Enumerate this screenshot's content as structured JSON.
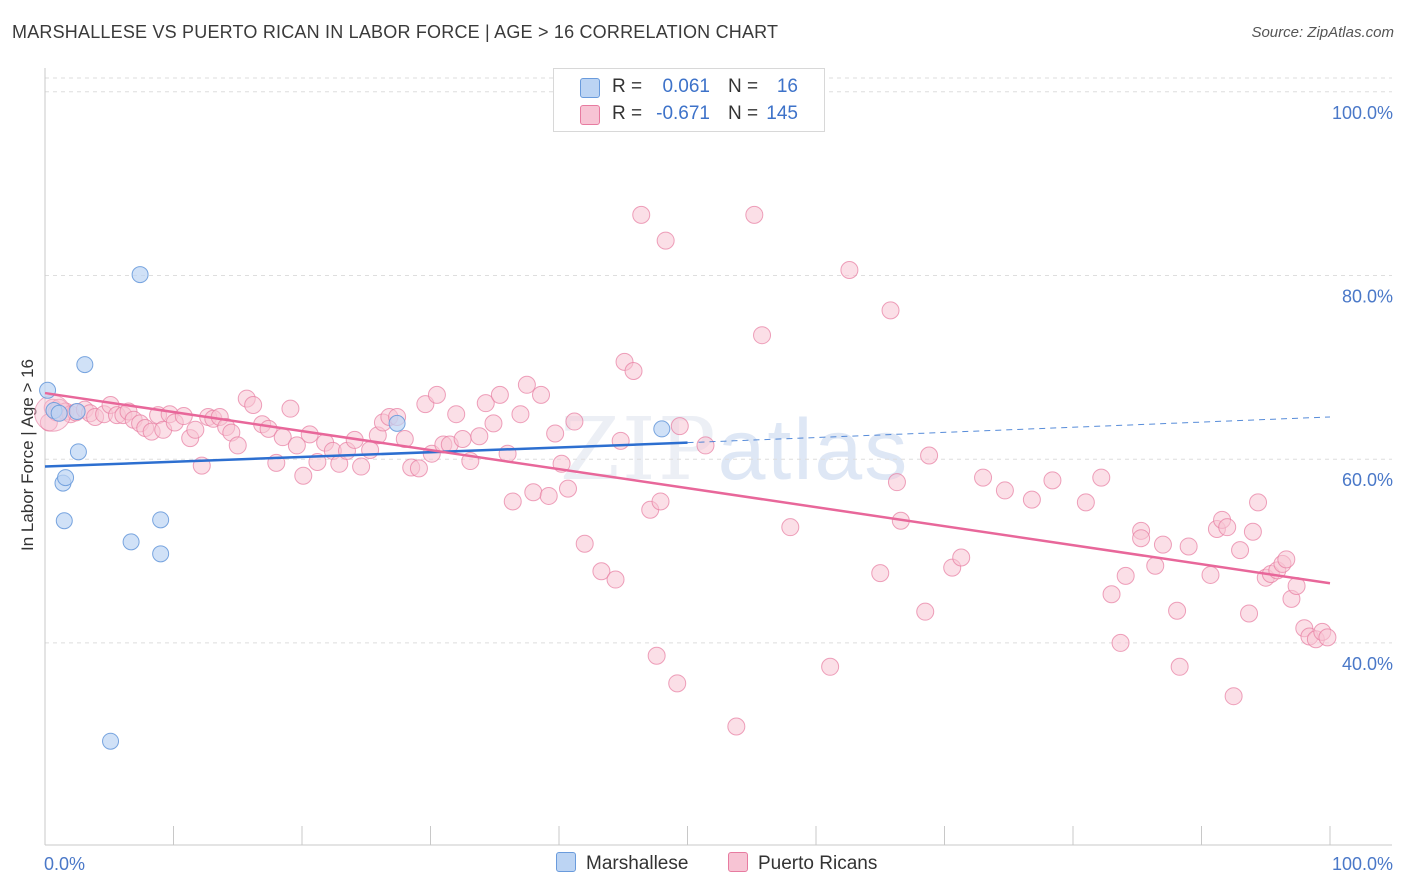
{
  "title": "MARSHALLESE VS PUERTO RICAN IN LABOR FORCE | AGE > 16 CORRELATION CHART",
  "source": "Source: ZipAtlas.com",
  "watermark": {
    "zip": "ZIP",
    "atlas": "atlas"
  },
  "colors": {
    "marshallese": "#6a9bdc",
    "marshallese_fill": "#bcd4f3",
    "puerto": "#e77ba0",
    "puerto_fill": "#f7c4d4",
    "trend_blue": "#2d6fd0",
    "trend_pink": "#e8679a",
    "axis_text": "#4a78c8"
  },
  "legend_top": {
    "rows": [
      {
        "r_label": "R =",
        "r_value": "0.061",
        "n_label": "N =",
        "n_value": "16"
      },
      {
        "r_label": "R =",
        "r_value": "-0.671",
        "n_label": "N =",
        "n_value": "145"
      }
    ]
  },
  "legend_bottom": {
    "marshallese": "Marshallese",
    "puerto": "Puerto Ricans"
  },
  "chart_data": {
    "type": "scatter",
    "title": "MARSHALLESE VS PUERTO RICAN IN LABOR FORCE | AGE > 16 CORRELATION CHART",
    "xlabel": "",
    "ylabel": "In Labor Force | Age > 16",
    "xlim": [
      0,
      100
    ],
    "ylim": [
      18,
      101.5
    ],
    "x_tick_labels": [
      "0.0%",
      "100.0%"
    ],
    "y_ticks": [
      40,
      60,
      80,
      100
    ],
    "y_tick_labels": [
      "40.0%",
      "60.0%",
      "80.0%",
      "100.0%"
    ],
    "series": [
      {
        "name": "Marshallese",
        "r": 0.061,
        "n": 16,
        "trend": {
          "x0": 0,
          "y0": 59.2,
          "x1": 50,
          "y1": 61.8,
          "dash_to_x": 100,
          "dash_to_y": 64.6
        },
        "points": [
          [
            0.2,
            67.5
          ],
          [
            0.7,
            65.3
          ],
          [
            1.1,
            65.0
          ],
          [
            1.4,
            57.4
          ],
          [
            1.6,
            58.0
          ],
          [
            1.5,
            53.3
          ],
          [
            2.5,
            65.2
          ],
          [
            2.6,
            60.8
          ],
          [
            3.1,
            70.3
          ],
          [
            5.1,
            29.3
          ],
          [
            6.7,
            51.0
          ],
          [
            7.4,
            80.1
          ],
          [
            9.0,
            49.7
          ],
          [
            9.0,
            53.4
          ],
          [
            27.4,
            63.9
          ],
          [
            48.0,
            63.3
          ]
        ]
      },
      {
        "name": "Puerto Ricans",
        "r": -0.671,
        "n": 145,
        "trend": {
          "x0": 0,
          "y0": 67.2,
          "x1": 100,
          "y1": 46.5
        },
        "points": [
          [
            0.3,
            64.0
          ],
          [
            0.6,
            65.6
          ],
          [
            0.9,
            65.1
          ],
          [
            1.1,
            65.6
          ],
          [
            1.6,
            65.2
          ],
          [
            2.0,
            64.9
          ],
          [
            2.4,
            65.1
          ],
          [
            3.1,
            65.4
          ],
          [
            3.5,
            65.0
          ],
          [
            3.9,
            64.6
          ],
          [
            4.6,
            64.9
          ],
          [
            5.1,
            65.9
          ],
          [
            5.6,
            64.8
          ],
          [
            6.1,
            64.8
          ],
          [
            6.5,
            65.2
          ],
          [
            6.9,
            64.3
          ],
          [
            7.4,
            63.9
          ],
          [
            7.8,
            63.4
          ],
          [
            8.3,
            63.0
          ],
          [
            8.8,
            64.8
          ],
          [
            9.2,
            63.2
          ],
          [
            9.7,
            64.9
          ],
          [
            10.1,
            64.0
          ],
          [
            10.8,
            64.7
          ],
          [
            11.3,
            62.3
          ],
          [
            11.7,
            63.2
          ],
          [
            12.2,
            59.3
          ],
          [
            12.7,
            64.6
          ],
          [
            13.1,
            64.4
          ],
          [
            13.6,
            64.6
          ],
          [
            14.1,
            63.5
          ],
          [
            14.5,
            62.9
          ],
          [
            15.0,
            61.5
          ],
          [
            15.7,
            66.6
          ],
          [
            16.2,
            65.9
          ],
          [
            16.9,
            63.8
          ],
          [
            17.4,
            63.3
          ],
          [
            18.0,
            59.6
          ],
          [
            18.5,
            62.4
          ],
          [
            19.1,
            65.5
          ],
          [
            19.6,
            61.5
          ],
          [
            20.1,
            58.2
          ],
          [
            20.6,
            62.7
          ],
          [
            21.2,
            59.7
          ],
          [
            21.8,
            61.8
          ],
          [
            22.4,
            60.9
          ],
          [
            22.9,
            59.5
          ],
          [
            23.5,
            60.9
          ],
          [
            24.1,
            62.1
          ],
          [
            24.6,
            59.2
          ],
          [
            25.3,
            61.0
          ],
          [
            25.9,
            62.6
          ],
          [
            26.3,
            64.0
          ],
          [
            26.8,
            64.6
          ],
          [
            27.4,
            64.6
          ],
          [
            28.0,
            62.2
          ],
          [
            28.5,
            59.1
          ],
          [
            29.1,
            59.0
          ],
          [
            29.6,
            66.0
          ],
          [
            30.1,
            60.6
          ],
          [
            30.5,
            67.0
          ],
          [
            31.0,
            61.6
          ],
          [
            31.5,
            61.6
          ],
          [
            32.0,
            64.9
          ],
          [
            32.5,
            62.2
          ],
          [
            33.1,
            59.8
          ],
          [
            33.8,
            62.5
          ],
          [
            34.3,
            66.1
          ],
          [
            34.9,
            63.9
          ],
          [
            35.4,
            67.0
          ],
          [
            36.0,
            60.6
          ],
          [
            36.4,
            55.4
          ],
          [
            37.0,
            64.9
          ],
          [
            37.5,
            68.1
          ],
          [
            38.0,
            56.4
          ],
          [
            38.6,
            67.0
          ],
          [
            39.2,
            56.0
          ],
          [
            39.7,
            62.8
          ],
          [
            40.2,
            59.5
          ],
          [
            40.7,
            56.8
          ],
          [
            41.2,
            64.1
          ],
          [
            42.0,
            50.8
          ],
          [
            43.3,
            47.8
          ],
          [
            44.4,
            46.9
          ],
          [
            44.8,
            62.0
          ],
          [
            45.1,
            70.6
          ],
          [
            45.8,
            69.6
          ],
          [
            46.4,
            86.6
          ],
          [
            47.1,
            54.5
          ],
          [
            47.6,
            38.6
          ],
          [
            47.9,
            55.4
          ],
          [
            49.4,
            63.6
          ],
          [
            49.2,
            35.6
          ],
          [
            51.4,
            61.5
          ],
          [
            53.8,
            30.9
          ],
          [
            55.8,
            73.5
          ],
          [
            58.0,
            52.6
          ],
          [
            61.1,
            37.4
          ],
          [
            62.6,
            80.6
          ],
          [
            65.0,
            47.6
          ],
          [
            65.8,
            76.2
          ],
          [
            66.3,
            57.5
          ],
          [
            66.6,
            53.3
          ],
          [
            68.5,
            43.4
          ],
          [
            68.8,
            60.4
          ],
          [
            70.6,
            48.2
          ],
          [
            71.3,
            49.3
          ],
          [
            73.0,
            58.0
          ],
          [
            74.7,
            56.6
          ],
          [
            76.8,
            55.6
          ],
          [
            78.4,
            57.7
          ],
          [
            81.0,
            55.3
          ],
          [
            82.2,
            58.0
          ],
          [
            83.0,
            45.3
          ],
          [
            83.7,
            40.0
          ],
          [
            84.1,
            47.3
          ],
          [
            85.3,
            52.2
          ],
          [
            85.3,
            51.4
          ],
          [
            86.4,
            48.4
          ],
          [
            87.0,
            50.7
          ],
          [
            88.1,
            43.5
          ],
          [
            88.3,
            37.4
          ],
          [
            89.0,
            50.5
          ],
          [
            90.7,
            47.4
          ],
          [
            91.2,
            52.4
          ],
          [
            91.6,
            53.4
          ],
          [
            92.0,
            52.6
          ],
          [
            92.5,
            34.2
          ],
          [
            93.0,
            50.1
          ],
          [
            93.7,
            43.2
          ],
          [
            94.0,
            52.1
          ],
          [
            94.4,
            55.3
          ],
          [
            95.0,
            47.1
          ],
          [
            95.4,
            47.5
          ],
          [
            95.9,
            47.9
          ],
          [
            96.3,
            48.6
          ],
          [
            96.6,
            49.1
          ],
          [
            97.0,
            44.8
          ],
          [
            97.4,
            46.2
          ],
          [
            98.0,
            41.6
          ],
          [
            98.4,
            40.7
          ],
          [
            98.9,
            40.4
          ],
          [
            99.4,
            41.2
          ],
          [
            99.8,
            40.6
          ],
          [
            55.2,
            86.6
          ],
          [
            48.3,
            83.8
          ]
        ]
      }
    ]
  }
}
